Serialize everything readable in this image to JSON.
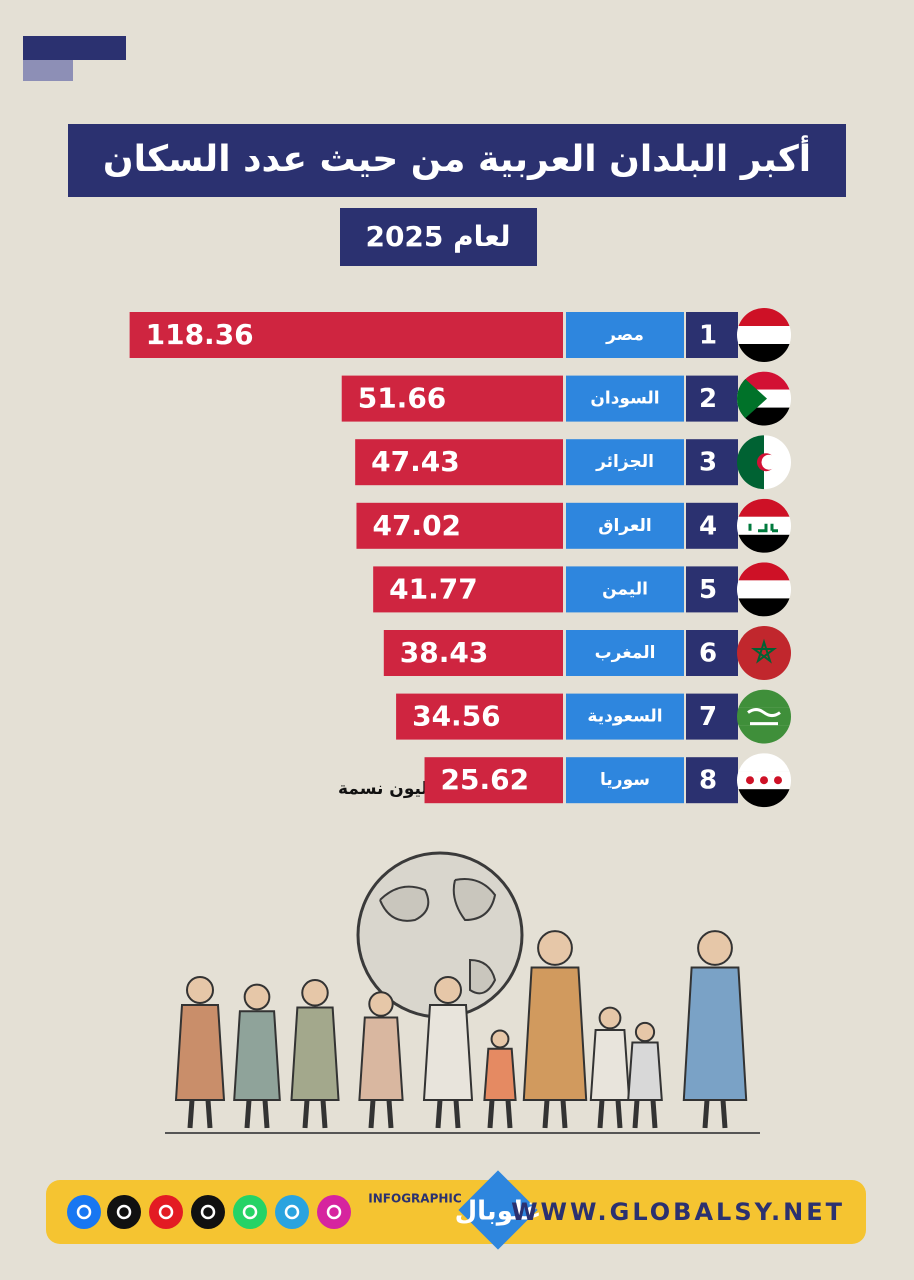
{
  "chart_data": {
    "type": "bar",
    "title": "أكبر البلدان العربية من حيث عدد السكان",
    "subtitle": "لعام 2025",
    "categories": [
      "مصر",
      "السودان",
      "الجزائر",
      "العراق",
      "اليمن",
      "المغرب",
      "السعودية",
      "سوريا"
    ],
    "ranks": [
      1,
      2,
      3,
      4,
      5,
      6,
      7,
      8
    ],
    "values": [
      118.36,
      51.66,
      47.43,
      47.02,
      41.77,
      38.43,
      34.56,
      25.62
    ],
    "color": "#cf2540",
    "note": "العدد بالمليون نسمة"
  },
  "footer": {
    "infographic_label": "INFOGRAPHIC",
    "logo": "غلوبال",
    "website": "WWW.GLOBALSY.NET"
  }
}
